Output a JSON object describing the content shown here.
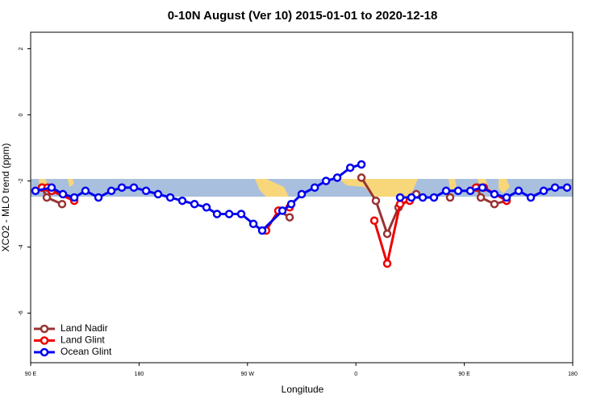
{
  "chart_data": {
    "type": "line",
    "title": "0-10N August (Ver 10)   2015-01-01 to 2020-12-18",
    "x_label": "Longitude",
    "y_label": "XCO2 - MLO trend (ppm)",
    "xlim": [
      90,
      540
    ],
    "ylim": [
      -7.5,
      2.5
    ],
    "xticks": [
      {
        "value": 90,
        "label": "90 E"
      },
      180,
      {
        "value": 270,
        "label": "90 W"
      },
      {
        "value": 360,
        "label": "0"
      },
      {
        "value": 450,
        "label": "90 E"
      },
      {
        "value": 540,
        "label": "180"
      }
    ],
    "yticks": [
      -6,
      -4,
      -2,
      0,
      2
    ],
    "legend": "bottom-left",
    "series": [
      {
        "name": "Land Nadir",
        "color": "#993333",
        "x": [
          99.4,
          103.4,
          116.1,
          200,
          296.3,
          305,
          330,
          364.6,
          376.6,
          386,
          395.4,
          410.1,
          425,
          438.2,
          450,
          461,
          463.7,
          475,
          485.1
        ],
        "values": [
          -2.2,
          -2.5,
          -2.7,
          null,
          -2.9,
          -3.1,
          null,
          -1.9,
          -2.6,
          -3.6,
          -2.8,
          -2.4,
          null,
          -2.5,
          null,
          -2.2,
          -2.5,
          -2.7,
          -2.6
        ]
      },
      {
        "name": "Land Glint",
        "color": "#ee0000",
        "x": [
          99.4,
          104,
          107.4,
          126.2,
          200,
          285.5,
          295.6,
          305,
          340,
          375.3,
          386,
          396.7,
          404.7,
          430,
          459.7,
          466.3,
          485.1
        ],
        "values": [
          -2.2,
          -2.2,
          -2.3,
          -2.6,
          null,
          -3.5,
          -2.9,
          -2.8,
          null,
          -3.2,
          -4.5,
          -2.7,
          -2.6,
          null,
          -2.2,
          -2.2,
          -2.6
        ]
      },
      {
        "name": "Ocean Glint",
        "color": "#0000ee",
        "x": [
          94,
          107.4,
          116.8,
          126.2,
          135.5,
          146.3,
          157,
          165.7,
          175.7,
          185.8,
          195.8,
          205.9,
          215.9,
          226,
          236,
          244.7,
          254.8,
          264.8,
          274.9,
          282.2,
          299,
          306.3,
          315,
          325.8,
          335.2,
          344.5,
          355.3,
          364.6,
          380,
          396.7,
          406.1,
          415.5,
          424.8,
          434.9,
          444.9,
          455,
          465,
          475,
          485.1,
          495.1,
          505.2,
          515.9,
          525.3,
          535.3
        ],
        "values": [
          -2.3,
          -2.2,
          -2.4,
          -2.5,
          -2.3,
          -2.5,
          -2.3,
          -2.2,
          -2.2,
          -2.3,
          -2.4,
          -2.5,
          -2.6,
          -2.7,
          -2.8,
          -3.0,
          -3.0,
          -3.0,
          -3.3,
          -3.5,
          -2.9,
          -2.7,
          -2.4,
          -2.2,
          -2.0,
          -1.9,
          -1.6,
          -1.5,
          null,
          -2.5,
          -2.5,
          -2.5,
          -2.5,
          -2.3,
          -2.3,
          -2.3,
          -2.2,
          -2.4,
          -2.5,
          -2.3,
          -2.5,
          -2.3,
          -2.2,
          -2.2
        ]
      }
    ]
  }
}
